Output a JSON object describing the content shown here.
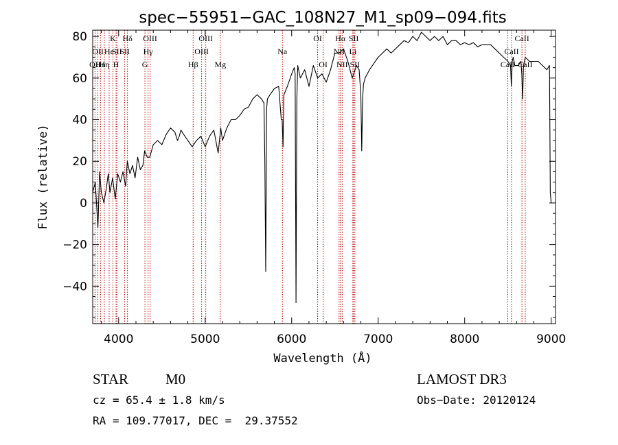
{
  "chart_data": {
    "type": "line",
    "title": "spec−55951−GAC_108N27_M1_sp09−094.fits",
    "xlabel": "Wavelength (Å)",
    "ylabel": "Flux (relative)",
    "xlim": [
      3700,
      9050
    ],
    "ylim": [
      -58,
      83
    ],
    "x_ticks": [
      4000,
      5000,
      6000,
      7000,
      8000,
      9000
    ],
    "y_ticks": [
      -40,
      -20,
      0,
      20,
      40,
      60,
      80
    ],
    "x_tick_labels": [
      "4000",
      "5000",
      "6000",
      "7000",
      "8000",
      "9000"
    ],
    "y_tick_labels": [
      "−40",
      "−20",
      "0",
      "20",
      "40",
      "60",
      "80"
    ],
    "grid": false,
    "series": [
      {
        "name": "spectrum",
        "color": "#000000",
        "x": [
          3700,
          3730,
          3760,
          3780,
          3800,
          3830,
          3860,
          3880,
          3900,
          3930,
          3960,
          3990,
          4020,
          4050,
          4080,
          4100,
          4130,
          4160,
          4190,
          4220,
          4250,
          4280,
          4300,
          4330,
          4360,
          4400,
          4450,
          4500,
          4550,
          4600,
          4650,
          4680,
          4700,
          4720,
          4750,
          4800,
          4850,
          4900,
          4950,
          5000,
          5050,
          5100,
          5150,
          5180,
          5200,
          5250,
          5300,
          5350,
          5400,
          5450,
          5500,
          5550,
          5600,
          5650,
          5680,
          5690,
          5700,
          5710,
          5720,
          5750,
          5800,
          5850,
          5880,
          5890,
          5900,
          5910,
          5920,
          5950,
          6000,
          6030,
          6040,
          6050,
          6060,
          6070,
          6100,
          6150,
          6200,
          6250,
          6300,
          6350,
          6400,
          6450,
          6500,
          6550,
          6600,
          6650,
          6700,
          6750,
          6780,
          6800,
          6810,
          6820,
          6830,
          6850,
          6900,
          6950,
          7000,
          7050,
          7100,
          7150,
          7200,
          7250,
          7300,
          7350,
          7400,
          7450,
          7500,
          7550,
          7600,
          7650,
          7700,
          7750,
          7800,
          7850,
          7900,
          7950,
          8000,
          8050,
          8100,
          8150,
          8200,
          8250,
          8300,
          8350,
          8400,
          8450,
          8500,
          8530,
          8540,
          8550,
          8560,
          8580,
          8620,
          8650,
          8660,
          8670,
          8680,
          8700,
          8750,
          8800,
          8850,
          8900,
          8950,
          8980,
          8990,
          9000
        ],
        "y": [
          5,
          10,
          -12,
          15,
          5,
          0,
          8,
          14,
          5,
          12,
          2,
          14,
          10,
          15,
          8,
          20,
          14,
          18,
          12,
          22,
          16,
          18,
          25,
          22,
          22,
          28,
          30,
          28,
          33,
          36,
          34,
          30,
          32,
          35,
          33,
          30,
          27,
          30,
          32,
          27,
          32,
          35,
          24,
          36,
          30,
          36,
          40,
          40,
          42,
          45,
          46,
          50,
          52,
          50,
          48,
          20,
          -33,
          45,
          50,
          52,
          55,
          56,
          40,
          40,
          27,
          52,
          53,
          56,
          62,
          65,
          62,
          -48,
          50,
          66,
          60,
          64,
          56,
          66,
          60,
          62,
          58,
          64,
          72,
          72,
          74,
          68,
          60,
          66,
          64,
          52,
          25,
          50,
          57,
          60,
          64,
          67,
          70,
          72,
          74,
          72,
          74,
          76,
          78,
          77,
          80,
          78,
          82,
          80,
          78,
          80,
          78,
          80,
          76,
          78,
          78,
          76,
          77,
          76,
          77,
          75,
          76,
          76,
          76,
          74,
          72,
          70,
          68,
          66,
          56,
          68,
          70,
          66,
          66,
          68,
          62,
          50,
          66,
          70,
          68,
          68,
          68,
          66,
          64,
          66,
          5,
          0
        ]
      }
    ],
    "line_markers": [
      {
        "wl": 3727,
        "label": "OII",
        "row": 2
      },
      {
        "wl": 3760,
        "label": "OII",
        "row": 1
      },
      {
        "wl": 3790,
        "label": "Hn",
        "row": 2
      },
      {
        "wl": 3835,
        "label": "Hη",
        "row": 2
      },
      {
        "wl": 3890,
        "label": "He",
        "row": 1
      },
      {
        "wl": 3934,
        "label": "K",
        "row": 0
      },
      {
        "wl": 3970,
        "label": "H",
        "row": 2
      },
      {
        "wl": 3980,
        "label": "SII",
        "row": 1
      },
      {
        "wl": 4102,
        "label": "Hδ",
        "row": 0
      },
      {
        "wl": 4070,
        "label": "SII",
        "row": 1
      },
      {
        "wl": 4304,
        "label": "G",
        "row": 2
      },
      {
        "wl": 4340,
        "label": "Hγ",
        "row": 1
      },
      {
        "wl": 4363,
        "label": "OIII",
        "row": 0
      },
      {
        "wl": 4861,
        "label": "Hβ",
        "row": 2
      },
      {
        "wl": 4959,
        "label": "OIII",
        "row": 1
      },
      {
        "wl": 5007,
        "label": "OIII",
        "row": 0
      },
      {
        "wl": 5175,
        "label": "Mg",
        "row": 2
      },
      {
        "wl": 5893,
        "label": "Na",
        "row": 1
      },
      {
        "wl": 6300,
        "label": "OI",
        "row": 0
      },
      {
        "wl": 6364,
        "label": "OI",
        "row": 2
      },
      {
        "wl": 6548,
        "label": "NII",
        "row": 1
      },
      {
        "wl": 6563,
        "label": "Hα",
        "row": 0
      },
      {
        "wl": 6584,
        "label": "NII",
        "row": 2
      },
      {
        "wl": 6707,
        "label": "Li",
        "row": 1
      },
      {
        "wl": 6717,
        "label": "SII",
        "row": 0
      },
      {
        "wl": 6731,
        "label": "SII",
        "row": 2
      },
      {
        "wl": 8498,
        "label": "CaII",
        "row": 2
      },
      {
        "wl": 8542,
        "label": "CaII",
        "row": 1
      },
      {
        "wl": 8662,
        "label": "CaII",
        "row": 0
      },
      {
        "wl": 8700,
        "label": "CaII",
        "row": 2
      }
    ]
  },
  "footer": {
    "class_label": "STAR",
    "subclass_label": "M0",
    "survey_label": "LAMOST DR3",
    "redshift_text": "cz = 65.4 ± 1.8 km/s",
    "obs_date_text": "Obs−Date: 20120124",
    "coords_text": "RA = 109.77017, DEC =  29.37552"
  }
}
